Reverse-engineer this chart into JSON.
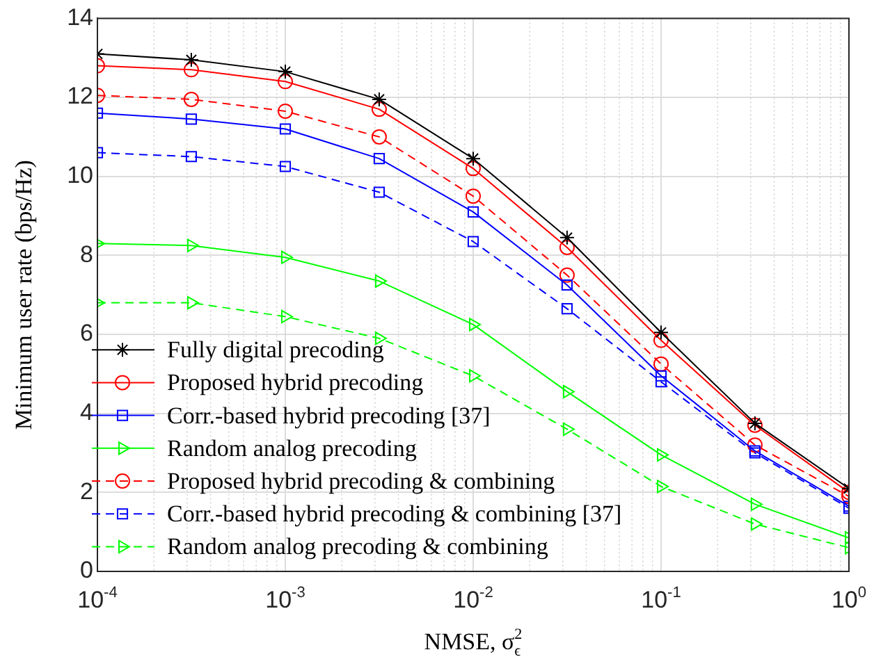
{
  "chart_data": {
    "type": "line",
    "xlabel": "NMSE, σ$_{ϵ}$$^{2}$",
    "ylabel": "Minimum user rate (bps/Hz)",
    "x": [
      0.0001,
      0.000316,
      0.001,
      0.00316,
      0.01,
      0.0316,
      0.1,
      0.316,
      1
    ],
    "series": [
      {
        "name": "Fully digital precoding",
        "color": "#000000",
        "marker": "cross",
        "line_style": "solid",
        "values": [
          13.1,
          12.95,
          12.65,
          11.95,
          10.45,
          8.45,
          6.05,
          3.75,
          2.1
        ]
      },
      {
        "name": "Proposed hybrid precoding",
        "color": "#ff0000",
        "marker": "circle",
        "line_style": "solid",
        "values": [
          12.8,
          12.7,
          12.4,
          11.7,
          10.2,
          8.2,
          5.85,
          3.7,
          2.0
        ]
      },
      {
        "name": "Corr.-based hybrid precoding [37]",
        "color": "#0000ff",
        "marker": "square",
        "line_style": "solid",
        "values": [
          11.6,
          11.45,
          11.2,
          10.45,
          9.1,
          7.25,
          4.95,
          3.05,
          1.65
        ]
      },
      {
        "name": "Random analog precoding",
        "color": "#00ff00",
        "marker": "triangle",
        "line_style": "solid",
        "values": [
          8.3,
          8.25,
          7.95,
          7.35,
          6.25,
          4.55,
          2.95,
          1.7,
          0.85
        ]
      },
      {
        "name": "Proposed hybrid precoding & combining",
        "color": "#ff0000",
        "marker": "circle",
        "line_style": "dashed",
        "values": [
          12.05,
          11.95,
          11.65,
          11.0,
          9.5,
          7.5,
          5.25,
          3.2,
          1.9
        ]
      },
      {
        "name": "Corr.-based hybrid precoding & combining [37]",
        "color": "#0000ff",
        "marker": "square",
        "line_style": "dashed",
        "values": [
          10.6,
          10.5,
          10.25,
          9.6,
          8.35,
          6.65,
          4.8,
          3.0,
          1.6
        ]
      },
      {
        "name": "Random analog precoding & combining",
        "color": "#00ff00",
        "marker": "triangle",
        "line_style": "dashed",
        "values": [
          6.8,
          6.8,
          6.45,
          5.9,
          4.95,
          3.6,
          2.15,
          1.2,
          0.6
        ]
      }
    ],
    "log": "x",
    "xlim": [
      0.0001,
      1
    ],
    "xticks": [
      {
        "value": 0.0001,
        "label": "10$^{-4}$"
      },
      {
        "value": 0.001,
        "label": "10$^{-3}$"
      },
      {
        "value": 0.01,
        "label": "10$^{-2}$"
      },
      {
        "value": 0.1,
        "label": "10$^{-1}$"
      },
      {
        "value": 1,
        "label": "10$^{0}$"
      }
    ],
    "ylim": [
      0,
      14
    ],
    "yticks": [
      0,
      2,
      4,
      6,
      8,
      10,
      12,
      14
    ],
    "grid": true,
    "legend": "bottom left"
  }
}
